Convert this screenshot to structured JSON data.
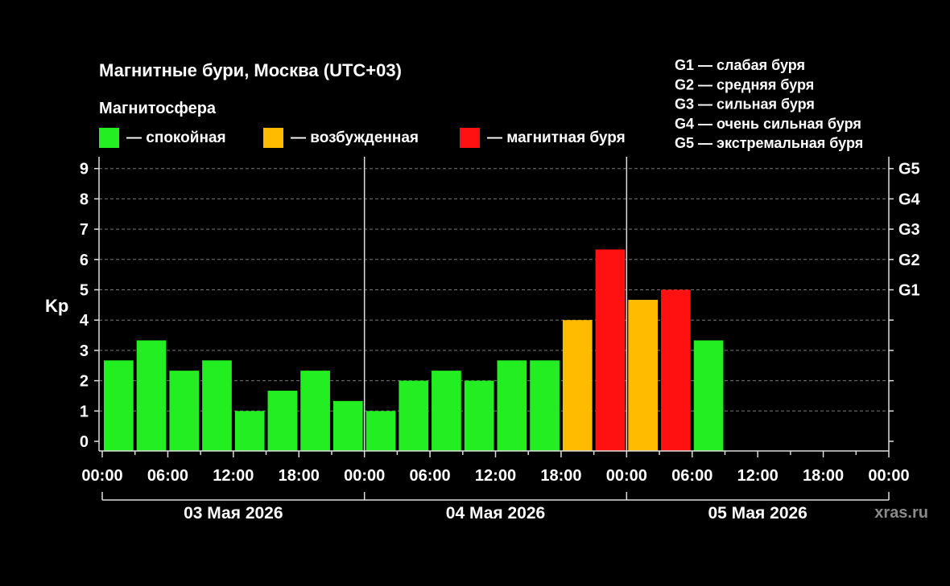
{
  "chart_data": {
    "type": "bar",
    "title": "Магнитные бури, Москва (UTC+03)",
    "legend_title": "Магнитосфера",
    "legend": [
      {
        "key": "quiet",
        "label": "— спокойная",
        "color": "#22ee22"
      },
      {
        "key": "active",
        "label": "— возбужденная",
        "color": "#ffbb00"
      },
      {
        "key": "storm",
        "label": "— магнитная буря",
        "color": "#ff1111"
      }
    ],
    "storm_scale": [
      "G1 — слабая буря",
      "G2 — средняя буря",
      "G3 — сильная буря",
      "G4 — очень сильная буря",
      "G5 — экстремальная буря"
    ],
    "ylabel": "Kp",
    "ylim": [
      0,
      9
    ],
    "yticks": [
      "0",
      "1",
      "2",
      "3",
      "4",
      "5",
      "6",
      "7",
      "8",
      "9"
    ],
    "right_ticks": [
      {
        "value": 5,
        "label": "G1"
      },
      {
        "value": 6,
        "label": "G2"
      },
      {
        "value": 7,
        "label": "G3"
      },
      {
        "value": 8,
        "label": "G4"
      },
      {
        "value": 9,
        "label": "G5"
      }
    ],
    "xticks": [
      "00:00",
      "06:00",
      "12:00",
      "18:00",
      "00:00",
      "06:00",
      "12:00",
      "18:00",
      "00:00",
      "06:00",
      "12:00",
      "18:00",
      "00:00"
    ],
    "days": [
      "03 Мая 2026",
      "04 Мая 2026",
      "05 Мая 2026"
    ],
    "interval_hours": 3,
    "grid": true,
    "bars": [
      {
        "start": "03 Мая 2026 00:00",
        "value": 2.67,
        "level": "quiet"
      },
      {
        "start": "03 Мая 2026 03:00",
        "value": 3.33,
        "level": "quiet"
      },
      {
        "start": "03 Мая 2026 06:00",
        "value": 2.33,
        "level": "quiet"
      },
      {
        "start": "03 Мая 2026 09:00",
        "value": 2.67,
        "level": "quiet"
      },
      {
        "start": "03 Мая 2026 12:00",
        "value": 1.0,
        "level": "quiet"
      },
      {
        "start": "03 Мая 2026 15:00",
        "value": 1.67,
        "level": "quiet"
      },
      {
        "start": "03 Мая 2026 18:00",
        "value": 2.33,
        "level": "quiet"
      },
      {
        "start": "03 Мая 2026 21:00",
        "value": 1.33,
        "level": "quiet"
      },
      {
        "start": "04 Мая 2026 00:00",
        "value": 1.0,
        "level": "quiet"
      },
      {
        "start": "04 Мая 2026 03:00",
        "value": 2.0,
        "level": "quiet"
      },
      {
        "start": "04 Мая 2026 06:00",
        "value": 2.33,
        "level": "quiet"
      },
      {
        "start": "04 Мая 2026 09:00",
        "value": 2.0,
        "level": "quiet"
      },
      {
        "start": "04 Мая 2026 12:00",
        "value": 2.67,
        "level": "quiet"
      },
      {
        "start": "04 Мая 2026 15:00",
        "value": 2.67,
        "level": "quiet"
      },
      {
        "start": "04 Мая 2026 18:00",
        "value": 4.0,
        "level": "active"
      },
      {
        "start": "04 Мая 2026 21:00",
        "value": 6.33,
        "level": "storm"
      },
      {
        "start": "05 Мая 2026 00:00",
        "value": 4.67,
        "level": "active"
      },
      {
        "start": "05 Мая 2026 03:00",
        "value": 5.0,
        "level": "storm"
      },
      {
        "start": "05 Мая 2026 06:00",
        "value": 3.33,
        "level": "quiet"
      }
    ]
  },
  "watermark": "xras.ru"
}
